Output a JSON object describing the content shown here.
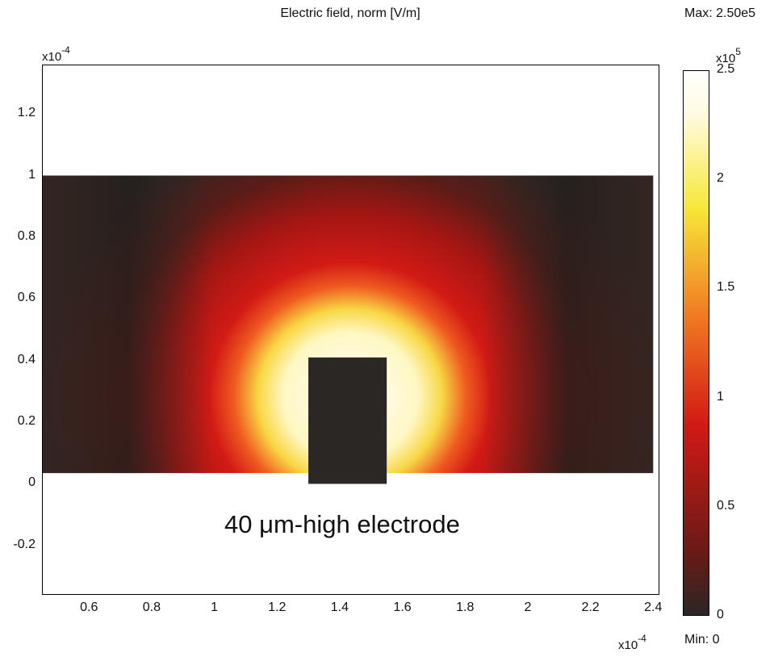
{
  "chart_data": {
    "type": "heatmap",
    "title": "Electric field, norm [V/m]",
    "max_label": "Max: 2.50e5",
    "min_label": "Min: 0",
    "x_multiplier": "x10",
    "x_multiplier_exp": "-4",
    "y_multiplier": "x10",
    "y_multiplier_exp": "-4",
    "xlim": [
      0.45,
      2.42
    ],
    "ylim": [
      -0.36,
      1.36
    ],
    "x_ticks": [
      "0.6",
      "0.8",
      "1",
      "1.2",
      "1.4",
      "1.6",
      "1.8",
      "2",
      "2.2",
      "2.4"
    ],
    "y_ticks": [
      "1.2",
      "1",
      "0.8",
      "0.6",
      "0.4",
      "0.2",
      "0",
      "-0.2"
    ],
    "domain": {
      "x": [
        0.45,
        2.4
      ],
      "y": [
        0.035,
        1.0
      ]
    },
    "electrode": {
      "x": [
        1.3,
        1.55
      ],
      "y": [
        0.0,
        0.41
      ]
    },
    "annotation": "40 μm-high electrode",
    "colorbar": {
      "min": 0,
      "max": 2.5,
      "multiplier": "x10",
      "multiplier_exp": "5",
      "ticks": [
        "2.5",
        "2",
        "1.5",
        "1",
        "0.5",
        "0"
      ],
      "colors": [
        "#2b2724",
        "#d21a15",
        "#f7e83a",
        "#ffffff"
      ]
    }
  }
}
